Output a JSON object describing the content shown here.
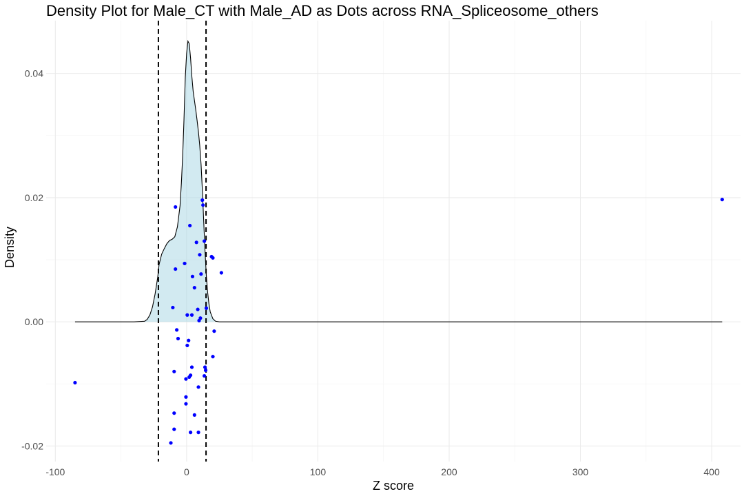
{
  "chart_data": {
    "type": "density_with_points",
    "title": "Density Plot for Male_CT with Male_AD as Dots across RNA_Spliceosome_others",
    "xlabel": "Z score",
    "ylabel": "Density",
    "xlim": [
      -107,
      422
    ],
    "ylim": [
      -0.0225,
      0.0485
    ],
    "x_ticks": [
      -100,
      0,
      100,
      200,
      300,
      400
    ],
    "x_tick_labels": [
      "-100",
      "0",
      "100",
      "200",
      "300",
      "400"
    ],
    "y_ticks": [
      -0.02,
      0.0,
      0.02,
      0.04
    ],
    "y_tick_labels": [
      "-0.02",
      "0.00",
      "0.02",
      "0.04"
    ],
    "grid": true,
    "vlines": [
      -21.5,
      14.8
    ],
    "colors": {
      "density_fill": "#add8e6",
      "density_line": "#000000",
      "points": "#0000ff",
      "vline": "#000000"
    },
    "density_curve": [
      [
        -85,
        0
      ],
      [
        -40,
        0
      ],
      [
        -32,
        0.0001
      ],
      [
        -30,
        0.0004
      ],
      [
        -28,
        0.0011
      ],
      [
        -26,
        0.0024
      ],
      [
        -24,
        0.0045
      ],
      [
        -22,
        0.0072
      ],
      [
        -21,
        0.0092
      ],
      [
        -19,
        0.0109
      ],
      [
        -17,
        0.0118
      ],
      [
        -15,
        0.0126
      ],
      [
        -13,
        0.0131
      ],
      [
        -11,
        0.0133
      ],
      [
        -9,
        0.0137
      ],
      [
        -7,
        0.0153
      ],
      [
        -5,
        0.0187
      ],
      [
        -4,
        0.0223
      ],
      [
        -3,
        0.0267
      ],
      [
        -2,
        0.0326
      ],
      [
        -1,
        0.0394
      ],
      [
        0,
        0.0432
      ],
      [
        1,
        0.0452
      ],
      [
        2,
        0.0448
      ],
      [
        3,
        0.0425
      ],
      [
        4,
        0.0395
      ],
      [
        5,
        0.0371
      ],
      [
        6,
        0.0356
      ],
      [
        7,
        0.0341
      ],
      [
        8,
        0.0324
      ],
      [
        9,
        0.0306
      ],
      [
        10,
        0.0284
      ],
      [
        11,
        0.0254
      ],
      [
        12,
        0.0212
      ],
      [
        13,
        0.0163
      ],
      [
        14,
        0.0115
      ],
      [
        15,
        0.0075
      ],
      [
        16,
        0.0048
      ],
      [
        17,
        0.0029
      ],
      [
        18,
        0.0016
      ],
      [
        20,
        0.0005
      ],
      [
        22,
        0.0001
      ],
      [
        25,
        0
      ],
      [
        408,
        0
      ]
    ],
    "points": [
      [
        -85,
        -0.0098
      ],
      [
        -8.5,
        0.0185
      ],
      [
        -8.5,
        0.0085
      ],
      [
        -10.5,
        0.0023
      ],
      [
        -7.5,
        -0.0013
      ],
      [
        -6.5,
        -0.0027
      ],
      [
        -9.5,
        -0.008
      ],
      [
        -9.5,
        -0.0147
      ],
      [
        -9.5,
        -0.0173
      ],
      [
        -12,
        -0.0195
      ],
      [
        -1.5,
        0.0094
      ],
      [
        0.5,
        0.0011
      ],
      [
        4,
        0.0011
      ],
      [
        2.5,
        0.0155
      ],
      [
        4.5,
        0.0073
      ],
      [
        6,
        0.0055
      ],
      [
        7.5,
        0.0128
      ],
      [
        10,
        0.0108
      ],
      [
        11,
        0.0077
      ],
      [
        12,
        0.0196
      ],
      [
        12.5,
        0.0188
      ],
      [
        13.5,
        0.013
      ],
      [
        15,
        0.0022
      ],
      [
        8.5,
        0.002
      ],
      [
        10.5,
        0.0006
      ],
      [
        9.5,
        0.0002
      ],
      [
        1.5,
        -0.003
      ],
      [
        0.5,
        -0.0038
      ],
      [
        4,
        -0.0073
      ],
      [
        3,
        -0.0086
      ],
      [
        2,
        -0.0089
      ],
      [
        -0.5,
        -0.0092
      ],
      [
        14,
        -0.0073
      ],
      [
        14.5,
        -0.0078
      ],
      [
        13.5,
        -0.0087
      ],
      [
        9,
        -0.0105
      ],
      [
        -0.5,
        -0.0121
      ],
      [
        -0.5,
        -0.0132
      ],
      [
        6,
        -0.015
      ],
      [
        3,
        -0.0178
      ],
      [
        9,
        -0.0178
      ],
      [
        19,
        0.0105
      ],
      [
        20,
        0.0103
      ],
      [
        26.5,
        0.0079
      ],
      [
        21,
        -0.0015
      ],
      [
        20,
        -0.0056
      ],
      [
        408,
        0.0197
      ]
    ]
  }
}
